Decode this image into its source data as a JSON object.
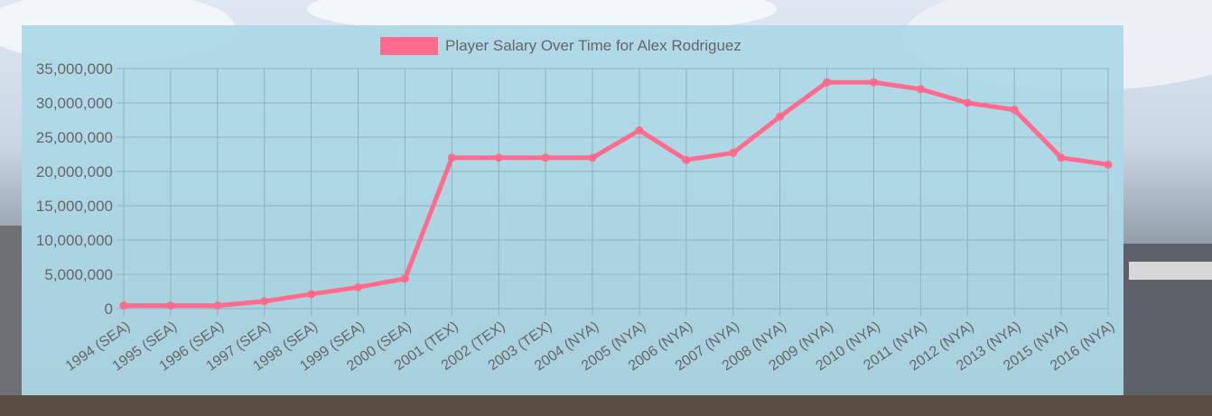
{
  "chart_data": {
    "type": "line",
    "title": "Player Salary Over Time for Alex Rodriguez",
    "legend": {
      "label": "Player Salary Over Time for Alex Rodriguez",
      "placement": "top-center"
    },
    "categories": [
      "1994 (SEA)",
      "1995 (SEA)",
      "1996 (SEA)",
      "1997 (SEA)",
      "1998 (SEA)",
      "1999 (SEA)",
      "2000 (SEA)",
      "2001 (TEX)",
      "2002 (TEX)",
      "2003 (TEX)",
      "2004 (NYA)",
      "2005 (NYA)",
      "2006 (NYA)",
      "2007 (NYA)",
      "2008 (NYA)",
      "2009 (NYA)",
      "2010 (NYA)",
      "2011 (NYA)",
      "2012 (NYA)",
      "2013 (NYA)",
      "2015 (NYA)",
      "2016 (NYA)"
    ],
    "series": [
      {
        "values": [
          442334,
          442334,
          442334,
          1062500,
          2112500,
          3112500,
          4362500,
          22000000,
          22000000,
          22000000,
          22000000,
          26000000,
          21680727,
          22708525,
          28000000,
          33000000,
          33000000,
          32000000,
          30000000,
          29000000,
          22000000,
          21000000
        ]
      }
    ],
    "yticks": [
      "0",
      "5,000,000",
      "10,000,000",
      "15,000,000",
      "20,000,000",
      "25,000,000",
      "30,000,000",
      "35,000,000"
    ],
    "ylim": [
      0,
      35000000
    ],
    "grid": true,
    "colors": {
      "line": "#ff6b8c",
      "grid": "#8fb3bf",
      "text": "#666666",
      "panel": "#add8e6"
    }
  }
}
